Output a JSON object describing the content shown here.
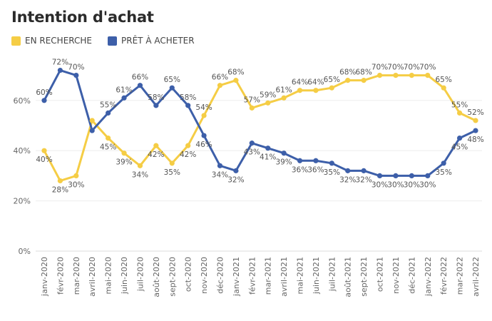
{
  "header": {
    "title": "Intention d'achat"
  },
  "chart_data": {
    "type": "line",
    "title": "Intention d'achat",
    "xlabel": "",
    "ylabel": "",
    "ylim": [
      0,
      75
    ],
    "yticks": [
      "0%",
      "20%",
      "40%",
      "60%"
    ],
    "grid": true,
    "legend_position": "top-left",
    "categories": [
      "janv-2020",
      "févr-2020",
      "mar-2020",
      "avril-2020",
      "mai-2020",
      "juin-2020",
      "juil-2020",
      "août-2020",
      "sept-2020",
      "oct-2020",
      "nov-2020",
      "déc-2020",
      "janv-2021",
      "févr-2021",
      "mar-2021",
      "avril-2021",
      "mai-2021",
      "juin-2021",
      "juil-2021",
      "août-2021",
      "sept-2021",
      "oct-2021",
      "nov-2021",
      "déc-2021",
      "janv-2022",
      "févr-2022",
      "mar-2022",
      "avril-2022"
    ],
    "series": [
      {
        "name": "EN RECHERCHE",
        "color": "#f5cd45",
        "values": [
          40,
          28,
          30,
          52,
          45,
          39,
          34,
          42,
          35,
          42,
          54,
          66,
          68,
          57,
          59,
          61,
          64,
          64,
          65,
          68,
          68,
          70,
          70,
          70,
          70,
          65,
          55,
          52
        ],
        "labels": [
          "40%",
          "28%",
          "30%",
          "",
          "45%",
          "39%",
          "34%",
          "42%",
          "35%",
          "42%",
          "54%",
          "66%",
          "68%",
          "57%",
          "59%",
          "61%",
          "64%",
          "64%",
          "65%",
          "68%",
          "68%",
          "70%",
          "70%",
          "70%",
          "70%",
          "65%",
          "55%",
          "52%"
        ]
      },
      {
        "name": "PRÊT À ACHETER",
        "color": "#3d5fa9",
        "values": [
          60,
          72,
          70,
          48,
          55,
          61,
          66,
          58,
          65,
          58,
          46,
          34,
          32,
          43,
          41,
          39,
          36,
          36,
          35,
          32,
          32,
          30,
          30,
          30,
          30,
          35,
          45,
          48
        ],
        "labels": [
          "60%",
          "72%",
          "70%",
          "",
          "55%",
          "61%",
          "66%",
          "58%",
          "65%",
          "58%",
          "46%",
          "34%",
          "32%",
          "43%",
          "41%",
          "39%",
          "36%",
          "36%",
          "35%",
          "32%",
          "32%",
          "30%",
          "30%",
          "30%",
          "30%",
          "35%",
          "45%",
          "48%"
        ]
      }
    ]
  }
}
